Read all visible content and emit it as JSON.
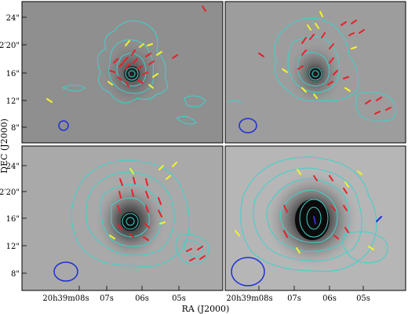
{
  "figure": {
    "y_axis_title": "DEC (J2000)",
    "x_axis_title": "RA (J2000)",
    "dec_tick_labels": [
      "24\"",
      "+68°02′20\"",
      "16\"",
      "12\"",
      "8\""
    ],
    "ra_tick_labels": [
      "20h39m08s",
      "07s",
      "06s",
      "05s"
    ]
  },
  "colors": {
    "contour": "#3fd1cc",
    "vector_red": "#e8202a",
    "vector_yellow": "#f3f32a",
    "beam": "#1f2fd6",
    "frame": "#000000"
  },
  "panels": [
    {
      "id": "top-left",
      "beam": "small",
      "source_peak": "compact"
    },
    {
      "id": "top-right",
      "beam": "small-medium",
      "source_peak": "compact"
    },
    {
      "id": "bottom-left",
      "beam": "medium",
      "source_peak": "extended"
    },
    {
      "id": "bottom-right",
      "beam": "large",
      "source_peak": "extended"
    }
  ]
}
